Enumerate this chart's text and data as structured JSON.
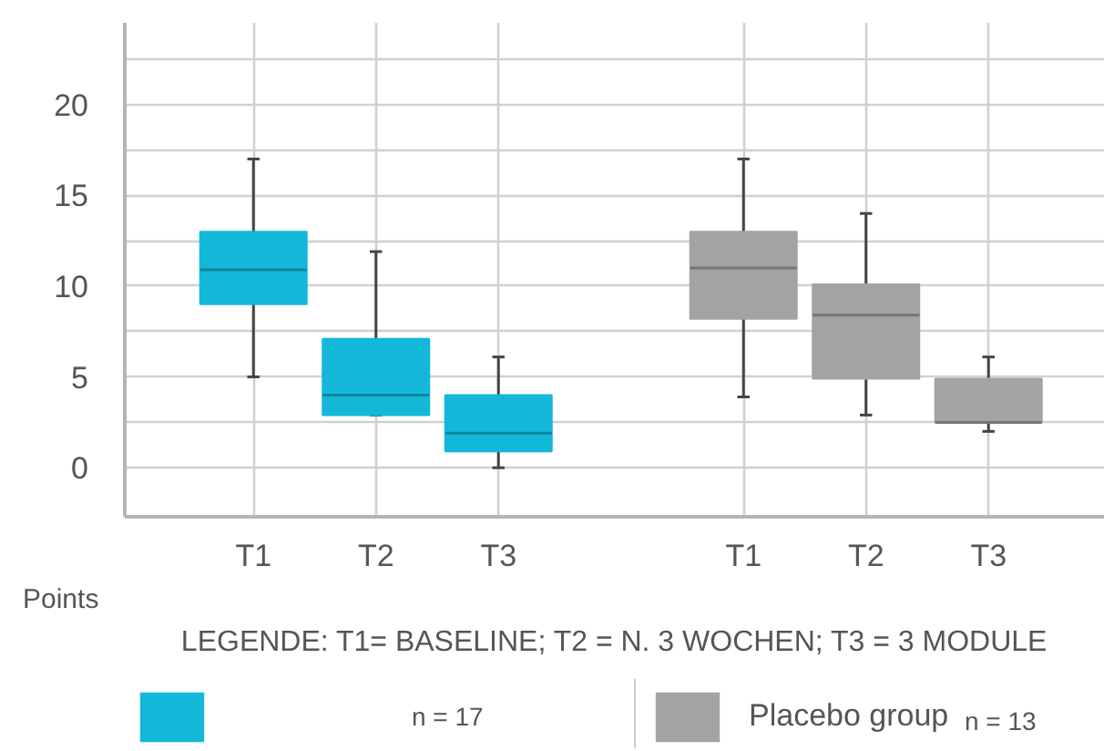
{
  "chart_data": {
    "type": "box",
    "categories": [
      "T1",
      "T2",
      "T3",
      null,
      "T1",
      "T2",
      "T3"
    ],
    "ylabel": "Points",
    "ylim": [
      -2.7,
      24.5
    ],
    "yticks": [
      0,
      {
        "value": 2.5,
        "label": null
      },
      5,
      {
        "value": 7.5,
        "label": null
      },
      10,
      {
        "value": 12.5,
        "label": null
      },
      15,
      {
        "value": 17.5,
        "label": null
      },
      20,
      {
        "value": 22.5,
        "label": null
      }
    ],
    "grid": true,
    "legend": "bottom",
    "annotations": [
      "LEGENDE: T1= BASELINE; T2 = N. 3 WOCHEN; T3 = 3 MODULE",
      "n = 17",
      "n = 13"
    ],
    "series": [
      {
        "color": "#13b8d8",
        "boxes": [
          {
            "low": 5,
            "q1": 9.0,
            "median": 10.9,
            "q3": 13.0,
            "high": 17
          },
          {
            "low": 2.9,
            "q1": 2.9,
            "median": 4.0,
            "q3": 7.1,
            "high": 11.9
          },
          {
            "low": 0,
            "q1": 0.9,
            "median": 1.9,
            "q3": 4.0,
            "high": 6.1
          },
          null,
          null,
          null,
          null
        ]
      },
      {
        "name": "Placebo group",
        "color": "#a3a3a6",
        "boxes": [
          null,
          null,
          null,
          null,
          {
            "low": 3.9,
            "q1": 8.2,
            "median": 11,
            "q3": 13,
            "high": 17
          },
          {
            "low": 2.9,
            "q1": 4.9,
            "median": 8.4,
            "q3": 10.1,
            "high": 14
          },
          {
            "low": 2.0,
            "q1": 2.5,
            "median": 2.5,
            "q3": 4.9,
            "high": 6.1
          }
        ]
      }
    ]
  }
}
